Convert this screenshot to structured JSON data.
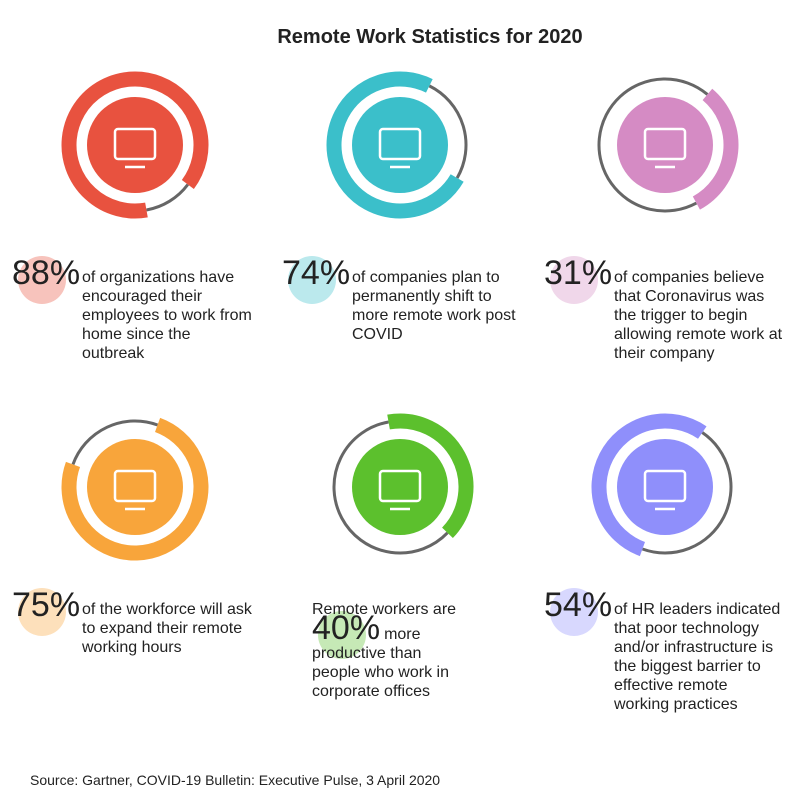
{
  "title": "Remote Work Statistics for 2020",
  "stats": [
    {
      "value": 88,
      "label": "88%",
      "color": "#e8523f",
      "text": "of organizations have encouraged their employees to work from home since the outbreak"
    },
    {
      "value": 74,
      "label": "74%",
      "color": "#3bbfca",
      "text": "of companies plan to permanently shift to more remote work post COVID"
    },
    {
      "value": 31,
      "label": "31%",
      "color": "#d58bc4",
      "text": "of companies believe that Coronavirus was the trigger to begin allowing remote work at their company"
    },
    {
      "value": 75,
      "label": "75%",
      "color": "#f8a53b",
      "text": "of the workforce will ask to expand their remote working hours"
    },
    {
      "value": 40,
      "label": "40%",
      "color": "#5cc02d",
      "text_before": "Remote workers are",
      "text": "more productive than people who work in corporate offices"
    },
    {
      "value": 54,
      "label": "54%",
      "color": "#8f8ffb",
      "text": "of HR leaders indicated that poor technology and/or infrastructure is the biggest barrier to effective remote working practices"
    }
  ],
  "source": "Source: Gartner, COVID-19 Bulletin: Executive Pulse, 3 April 2020"
}
